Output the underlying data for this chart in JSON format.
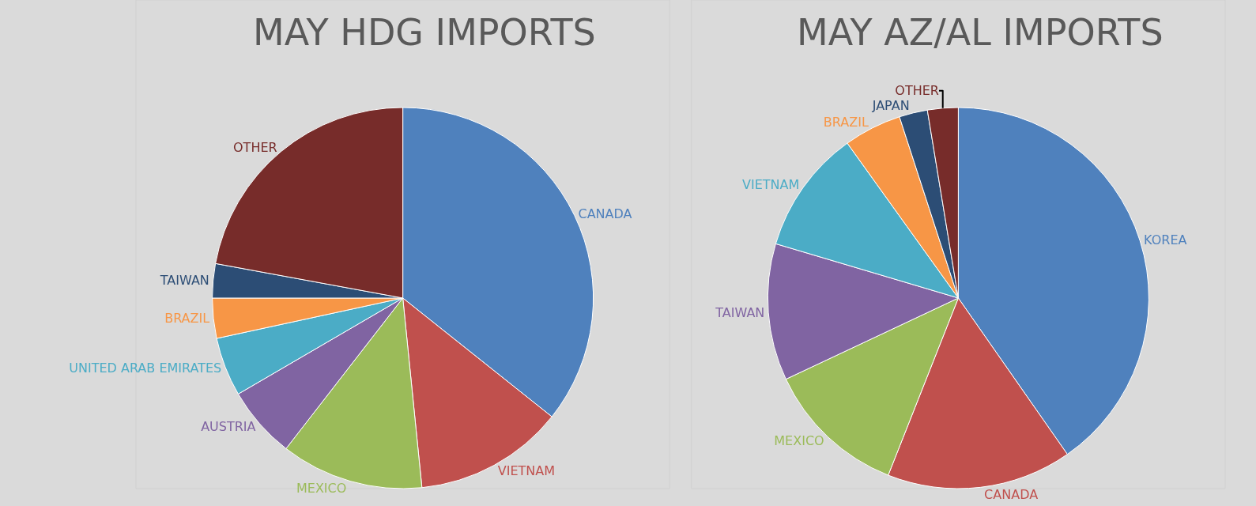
{
  "chart_data": [
    {
      "type": "pie",
      "title": "MAY HDG IMPORTS",
      "categories": [
        "CANADA",
        "VIETNAM",
        "MEXICO",
        "AUSTRIA",
        "UNITED ARAB EMIRATES",
        "BRAZIL",
        "TAIWAN",
        "OTHER"
      ],
      "values": [
        35.7,
        12.7,
        12.1,
        6.1,
        5.0,
        3.4,
        2.9,
        22.1
      ],
      "colors": [
        "#4f81bd",
        "#c0504d",
        "#9bbb59",
        "#8064a2",
        "#4bacc6",
        "#f79646",
        "#2c4d75",
        "#772c2a"
      ],
      "legend": false
    },
    {
      "type": "pie",
      "title": "MAY AZ/AL IMPORTS",
      "categories": [
        "KOREA",
        "CANADA",
        "MEXICO",
        "TAIWAN",
        "VIETNAM",
        "BRAZIL",
        "JAPAN",
        "OTHER"
      ],
      "values": [
        40.3,
        15.7,
        12.0,
        11.6,
        10.5,
        4.9,
        2.4,
        2.6
      ],
      "colors": [
        "#4f81bd",
        "#c0504d",
        "#9bbb59",
        "#8064a2",
        "#4bacc6",
        "#f79646",
        "#2c4d75",
        "#772c2a"
      ],
      "legend": false
    }
  ]
}
